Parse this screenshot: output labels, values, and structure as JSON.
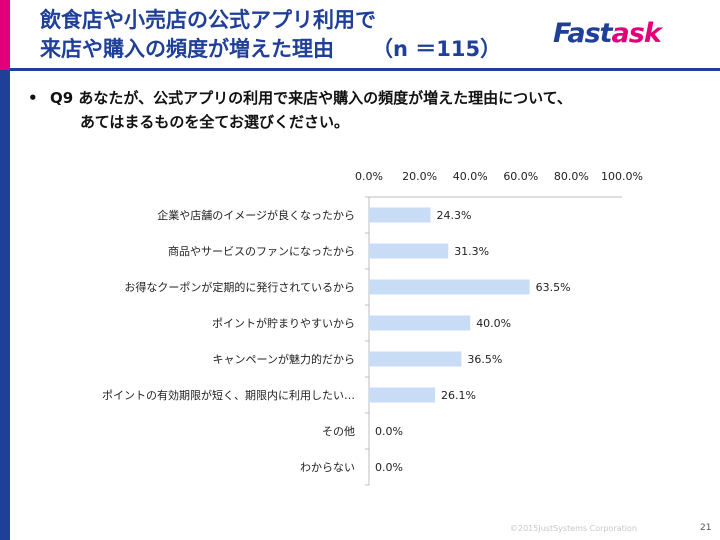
{
  "title": {
    "line1": "飲食店や小売店の公式アプリ利用で",
    "line2": "来店や購入の頻度が増えた理由",
    "sample": "（n ＝115）"
  },
  "logo": {
    "part1": "Fast",
    "part2": "ask"
  },
  "question": {
    "bullet": "•",
    "line1": "Q9 あなたが、公式アプリの利用で来店や購入の頻度が増えた理由について、",
    "line2": "あてはまるものを全てお選びください。"
  },
  "chart_data": {
    "type": "bar",
    "orientation": "horizontal",
    "categories": [
      "企業や店舗のイメージが良くなったから",
      "商品やサービスのファンになったから",
      "お得なクーポンが定期的に発行されているから",
      "ポイントが貯まりやすいから",
      "キャンペーンが魅力的だから",
      "ポイントの有効期限が短く、期限内に利用したい…",
      "その他",
      "わからない"
    ],
    "values": [
      24.3,
      31.3,
      63.5,
      40.0,
      36.5,
      26.1,
      0.0,
      0.0
    ],
    "value_labels": [
      "24.3%",
      "31.3%",
      "63.5%",
      "40.0%",
      "36.5%",
      "26.1%",
      "0.0%",
      "0.0%"
    ],
    "xlim": [
      0,
      100
    ],
    "xticks": [
      0,
      20,
      40,
      60,
      80,
      100
    ],
    "xtick_labels": [
      "0.0%",
      "20.0%",
      "40.0%",
      "60.0%",
      "80.0%",
      "100.0%"
    ],
    "axis_position": "top",
    "grid": false,
    "bar_color": "#c9dcf5"
  },
  "footer": {
    "copyright": "©2015JustSystems Corporation",
    "page": "21"
  }
}
